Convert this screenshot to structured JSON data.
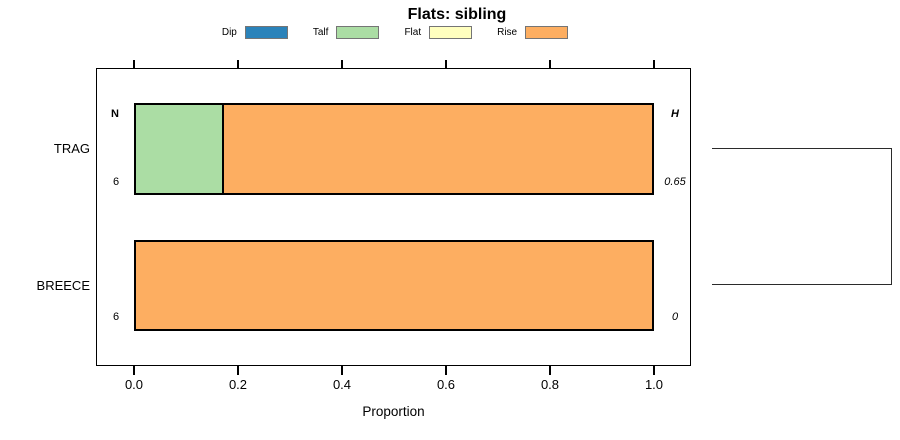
{
  "title": "Flats: sibling",
  "legend": {
    "items": [
      {
        "label": "Dip",
        "color": "#2B83BA"
      },
      {
        "label": "Talf",
        "color": "#ABDDA4"
      },
      {
        "label": "Flat",
        "color": "#FFFFBF"
      },
      {
        "label": "Rise",
        "color": "#FDAE61"
      }
    ]
  },
  "chart_data": {
    "type": "bar",
    "orientation": "horizontal",
    "stacked": true,
    "title": "Flats: sibling",
    "xlabel": "Proportion",
    "xlim": [
      0,
      1.0
    ],
    "xticks": [
      0,
      0.2,
      0.4,
      0.6,
      0.8,
      1.0
    ],
    "grid": false,
    "legend_position": "top-center",
    "categories": [
      "TRAG",
      "BREECE"
    ],
    "series": [
      {
        "name": "Dip",
        "color": "#2B83BA",
        "values": [
          0,
          0
        ]
      },
      {
        "name": "Talf",
        "color": "#ABDDA4",
        "values": [
          0.1667,
          0
        ]
      },
      {
        "name": "Flat",
        "color": "#FFFFBF",
        "values": [
          0,
          0
        ]
      },
      {
        "name": "Rise",
        "color": "#FDAE61",
        "values": [
          0.8333,
          1.0
        ]
      }
    ],
    "row_annotations": {
      "left_header": "N",
      "right_header": "H",
      "left_values": [
        "6",
        "6"
      ],
      "right_values": [
        "0.65",
        "0"
      ]
    }
  }
}
